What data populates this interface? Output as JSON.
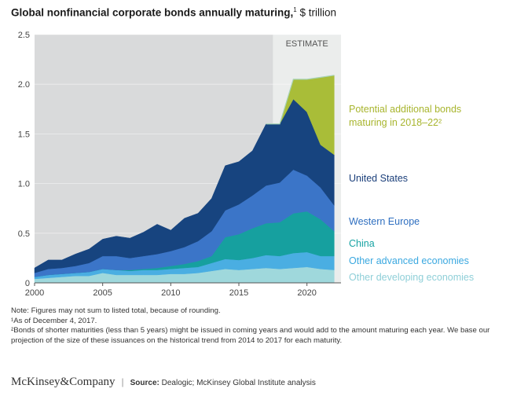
{
  "title": {
    "main": "Global nonfinancial corporate bonds annually maturing,",
    "sup": "1",
    "unit": " $ trillion"
  },
  "chart_data": {
    "type": "area",
    "stacked": true,
    "x": [
      2000,
      2001,
      2002,
      2003,
      2004,
      2005,
      2006,
      2007,
      2008,
      2009,
      2010,
      2011,
      2012,
      2013,
      2014,
      2015,
      2016,
      2017,
      2018,
      2019,
      2020,
      2021,
      2022
    ],
    "x_ticks": [
      2000,
      2005,
      2010,
      2015,
      2020
    ],
    "ylim": [
      0,
      2.5
    ],
    "y_ticks": [
      "0",
      "0.5",
      "1.0",
      "1.5",
      "2.0",
      "2.5"
    ],
    "estimate_start": 2017.5,
    "estimate_label": "ESTIMATE",
    "series": [
      {
        "name": "Other developing economies",
        "color": "#9fd8dc",
        "values": [
          0.04,
          0.05,
          0.06,
          0.07,
          0.07,
          0.1,
          0.08,
          0.08,
          0.08,
          0.08,
          0.09,
          0.09,
          0.1,
          0.12,
          0.14,
          0.13,
          0.14,
          0.15,
          0.14,
          0.15,
          0.16,
          0.14,
          0.13
        ]
      },
      {
        "name": "Other advanced economies",
        "color": "#4aaee2",
        "values": [
          0.02,
          0.03,
          0.03,
          0.03,
          0.04,
          0.04,
          0.05,
          0.04,
          0.05,
          0.05,
          0.05,
          0.06,
          0.06,
          0.08,
          0.1,
          0.1,
          0.11,
          0.13,
          0.13,
          0.15,
          0.15,
          0.13,
          0.14
        ]
      },
      {
        "name": "China",
        "color": "#16a09f",
        "values": [
          0.0,
          0.0,
          0.0,
          0.0,
          0.0,
          0.0,
          0.0,
          0.01,
          0.01,
          0.02,
          0.03,
          0.04,
          0.06,
          0.07,
          0.22,
          0.26,
          0.3,
          0.32,
          0.34,
          0.4,
          0.41,
          0.37,
          0.25
        ]
      },
      {
        "name": "Western Europe",
        "color": "#3b75c8",
        "values": [
          0.04,
          0.06,
          0.06,
          0.07,
          0.09,
          0.13,
          0.14,
          0.12,
          0.13,
          0.14,
          0.15,
          0.17,
          0.2,
          0.25,
          0.27,
          0.3,
          0.33,
          0.38,
          0.4,
          0.44,
          0.36,
          0.32,
          0.26
        ]
      },
      {
        "name": "United States",
        "color": "#17447f",
        "values": [
          0.05,
          0.09,
          0.08,
          0.12,
          0.14,
          0.17,
          0.2,
          0.2,
          0.24,
          0.3,
          0.21,
          0.29,
          0.28,
          0.33,
          0.45,
          0.43,
          0.45,
          0.62,
          0.59,
          0.71,
          0.64,
          0.43,
          0.51
        ]
      },
      {
        "name": "Potential additional bonds maturing in 2018–22²",
        "color": "#a9bd38",
        "x_start": 2018,
        "values": [
          0,
          0,
          0,
          0,
          0,
          0,
          0,
          0,
          0,
          0,
          0,
          0,
          0,
          0,
          0,
          0,
          0,
          0,
          0,
          0.2,
          0.33,
          0.68,
          0.8
        ]
      }
    ],
    "total_outline_color": "#a8d3b7"
  },
  "legend": {
    "potential_line1": "Potential additional bonds",
    "potential_line2": "maturing in 2018–22²",
    "united_states": "United States",
    "western_europe": "Western Europe",
    "china": "China",
    "other_advanced": "Other advanced economies",
    "other_developing": "Other developing economies"
  },
  "colors": {
    "potential_text": "#a8b52e",
    "us_text": "#1b3f7a",
    "we_text": "#2f6fc0",
    "china_text": "#17a3a3",
    "oa_text": "#3aa8e0",
    "od_text": "#8fcfd8"
  },
  "notes": {
    "note": "Note: Figures may not sum to listed total, because of rounding.",
    "fn1": "¹As of December 4, 2017.",
    "fn2": "²Bonds of shorter maturities (less than 5 years) might be issued in coming years and would add to the amount maturing each year. We base our projection of the size of these issuances on the historical trend from 2014 to 2017 for each maturity."
  },
  "footer": {
    "brand": "McKinsey&Company",
    "separator": "|",
    "source_label": "Source:",
    "source_text": " Dealogic; McKinsey Global Institute analysis"
  }
}
